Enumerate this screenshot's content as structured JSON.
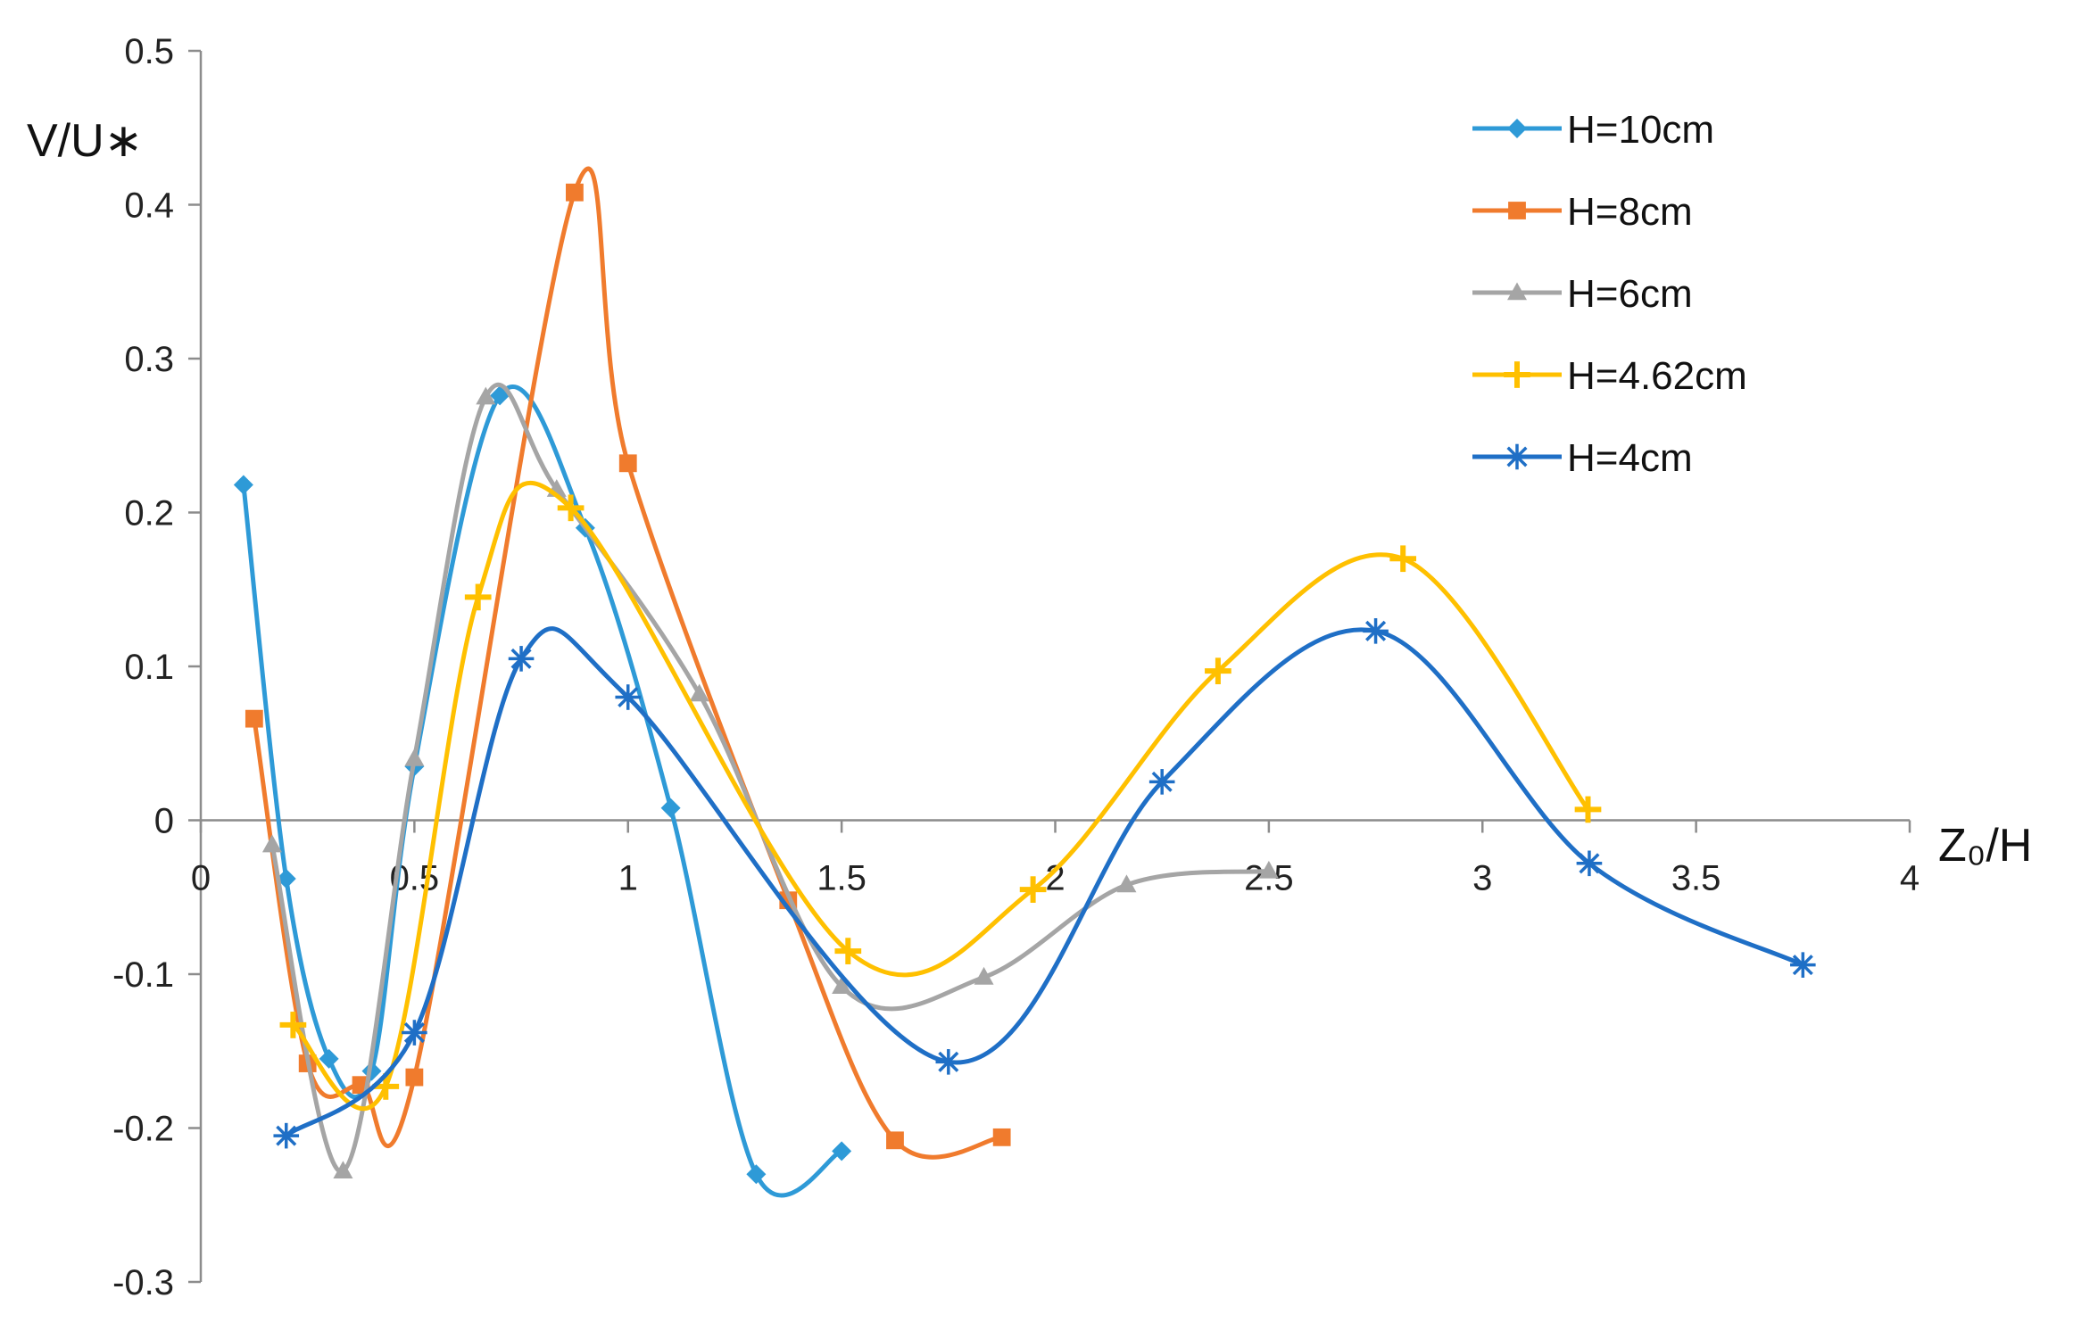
{
  "chart_data": {
    "type": "line",
    "title": "",
    "xlabel": "Z₀/H",
    "ylabel": "V/U∗",
    "xlim": [
      0,
      4
    ],
    "ylim": [
      -0.3,
      0.5
    ],
    "x_ticks": [
      "0",
      "0.5",
      "1",
      "1.5",
      "2",
      "2.5",
      "3",
      "3.5",
      "4"
    ],
    "y_ticks": [
      "0.5",
      "0.4",
      "0.3",
      "0.2",
      "0.1",
      "0",
      "-0.1",
      "-0.2",
      "-0.3"
    ],
    "grid": false,
    "smooth": true,
    "legend_position": "top-right",
    "series": [
      {
        "name": "H=10cm",
        "color": "#2e9ad7",
        "marker": "diamond",
        "points": [
          [
            0.1,
            0.218
          ],
          [
            0.2,
            -0.038
          ],
          [
            0.3,
            -0.155
          ],
          [
            0.4,
            -0.163
          ],
          [
            0.5,
            0.035
          ],
          [
            0.7,
            0.276
          ],
          [
            0.9,
            0.19
          ],
          [
            1.1,
            0.008
          ],
          [
            1.3,
            -0.23
          ],
          [
            1.5,
            -0.215
          ]
        ]
      },
      {
        "name": "H=8cm",
        "color": "#f07b2d",
        "marker": "square",
        "points": [
          [
            0.125,
            0.066
          ],
          [
            0.25,
            -0.158
          ],
          [
            0.375,
            -0.172
          ],
          [
            0.5,
            -0.167
          ],
          [
            0.875,
            0.408
          ],
          [
            1.0,
            0.232
          ],
          [
            1.375,
            -0.052
          ],
          [
            1.625,
            -0.208
          ],
          [
            1.875,
            -0.206
          ]
        ]
      },
      {
        "name": "H=6cm",
        "color": "#a5a5a5",
        "marker": "triangle",
        "points": [
          [
            0.167,
            -0.016
          ],
          [
            0.333,
            -0.228
          ],
          [
            0.5,
            0.04
          ],
          [
            0.667,
            0.275
          ],
          [
            0.833,
            0.215
          ],
          [
            1.167,
            0.082
          ],
          [
            1.5,
            -0.108
          ],
          [
            1.833,
            -0.102
          ],
          [
            2.167,
            -0.042
          ],
          [
            2.5,
            -0.033
          ]
        ]
      },
      {
        "name": "H=4.62cm",
        "color": "#ffc000",
        "marker": "plus",
        "points": [
          [
            0.216,
            -0.133
          ],
          [
            0.433,
            -0.173
          ],
          [
            0.649,
            0.145
          ],
          [
            0.866,
            0.203
          ],
          [
            1.515,
            -0.085
          ],
          [
            1.948,
            -0.045
          ],
          [
            2.381,
            0.097
          ],
          [
            2.814,
            0.17
          ],
          [
            3.247,
            0.007
          ]
        ]
      },
      {
        "name": "H=4cm",
        "color": "#1f6fc6",
        "marker": "asterisk",
        "points": [
          [
            0.2,
            -0.205
          ],
          [
            0.5,
            -0.138
          ],
          [
            0.75,
            0.105
          ],
          [
            1.0,
            0.08
          ],
          [
            1.75,
            -0.157
          ],
          [
            2.25,
            0.025
          ],
          [
            2.75,
            0.123
          ],
          [
            3.25,
            -0.028
          ],
          [
            3.75,
            -0.094
          ]
        ]
      }
    ]
  }
}
